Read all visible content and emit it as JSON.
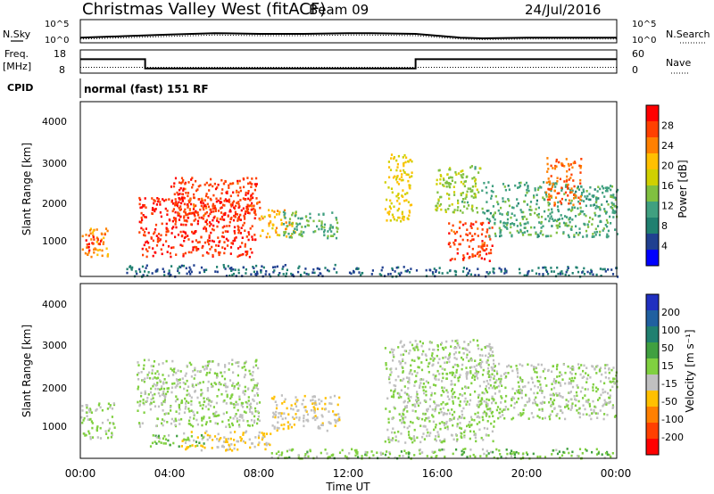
{
  "header": {
    "station": "Christmas Valley West (fitACF)",
    "beam": "Beam 09",
    "date": "24/Jul/2016"
  },
  "noise_panel": {
    "left_label": "N.Sky",
    "left_ticks": [
      "10^5",
      "10^0"
    ],
    "right_label": "N.Search",
    "right_ticks": [
      "10^5",
      "10^0"
    ]
  },
  "freq_panel": {
    "left_label_1": "Freq.",
    "left_label_2": "[MHz]",
    "left_ticks": [
      "18",
      "8"
    ],
    "right_label": "Nave",
    "right_ticks": [
      "60",
      "0"
    ]
  },
  "cpid": {
    "label": "CPID",
    "mode": "normal (fast) 151 RF"
  },
  "axes": {
    "time_ticks": [
      "00:00",
      "04:00",
      "08:00",
      "12:00",
      "16:00",
      "20:00",
      "00:00"
    ],
    "range_ticks": [
      "1000",
      "2000",
      "3000",
      "4000"
    ],
    "xlabel": "Time UT",
    "ylabel": "Slant Range [km]"
  },
  "power_colorbar": {
    "title": "Power [dB]",
    "ticks": [
      "28",
      "24",
      "20",
      "16",
      "12",
      "8",
      "4"
    ],
    "colors": [
      "#ff0000",
      "#ff4000",
      "#ff8000",
      "#ffc000",
      "#d0d000",
      "#80c040",
      "#40a080",
      "#208070",
      "#204090",
      "#0000ff"
    ]
  },
  "velocity_colorbar": {
    "title": "Velocity [m s⁻¹]",
    "ticks": [
      "200",
      "100",
      "50",
      "15",
      "-15",
      "-50",
      "-100",
      "-200"
    ],
    "colors": [
      "#2030c0",
      "#2060a0",
      "#208070",
      "#40a040",
      "#80d040",
      "#c0c0c0",
      "#ffc000",
      "#ff8000",
      "#ff4000",
      "#ff0000"
    ]
  },
  "chart_data": [
    {
      "type": "line",
      "title": "N.Sky / N.Search",
      "xlabel": "Time UT",
      "x_hours": [
        0,
        2,
        4,
        6,
        8,
        10,
        12,
        13,
        15,
        17,
        18,
        20,
        22,
        24
      ],
      "series": [
        {
          "name": "N.Sky",
          "values_log10": [
            0.35,
            0.45,
            0.55,
            0.65,
            0.6,
            0.6,
            0.65,
            0.65,
            0.6,
            0.35,
            0.3,
            0.35,
            0.35,
            0.35
          ]
        }
      ],
      "ylim_log10": [
        0,
        5
      ]
    },
    {
      "type": "line",
      "title": "Freq. / Nave",
      "xlabel": "Time UT",
      "segments_hours": [
        [
          0,
          2.9
        ],
        [
          2.9,
          15
        ],
        [
          15,
          24
        ]
      ],
      "series": [
        {
          "name": "Freq. [MHz]",
          "values": [
            14,
            10,
            14
          ]
        },
        {
          "name": "Nave",
          "values": [
            15,
            15,
            15
          ]
        }
      ],
      "ylim_freq": [
        8,
        18
      ],
      "ylim_nave": [
        0,
        60
      ]
    },
    {
      "type": "heatmap",
      "title": "Power [dB]",
      "xlabel": "Time UT",
      "ylabel": "Slant Range [km]",
      "xlim_hours": [
        0,
        24
      ],
      "ylim_km": [
        180,
        4600
      ],
      "zlim": [
        0,
        30
      ],
      "regions": [
        {
          "t": [
            0.0,
            1.2
          ],
          "r": [
            700,
            1450
          ],
          "value": 22
        },
        {
          "t": [
            0.2,
            1.0
          ],
          "r": [
            850,
            1250
          ],
          "value": 27
        },
        {
          "t": [
            2.6,
            7.8
          ],
          "r": [
            700,
            2200
          ],
          "value": 27
        },
        {
          "t": [
            4.0,
            8.0
          ],
          "r": [
            1600,
            2700
          ],
          "value": 26
        },
        {
          "t": [
            8.0,
            9.6
          ],
          "r": [
            1200,
            1900
          ],
          "value": 20
        },
        {
          "t": [
            9.0,
            11.6
          ],
          "r": [
            1150,
            1850
          ],
          "value": 12
        },
        {
          "t": [
            2.0,
            11.5
          ],
          "r": [
            200,
            500
          ],
          "value": 6
        },
        {
          "t": [
            13.6,
            14.8
          ],
          "r": [
            1600,
            3300
          ],
          "value": 18
        },
        {
          "t": [
            15.8,
            18.0
          ],
          "r": [
            1800,
            3000
          ],
          "value": 14
        },
        {
          "t": [
            16.4,
            18.4
          ],
          "r": [
            600,
            1600
          ],
          "value": 26
        },
        {
          "t": [
            18.0,
            24.0
          ],
          "r": [
            1200,
            2600
          ],
          "value": 11
        },
        {
          "t": [
            20.8,
            22.4
          ],
          "r": [
            2000,
            3200
          ],
          "value": 24
        },
        {
          "t": [
            12.0,
            24.0
          ],
          "r": [
            200,
            450
          ],
          "value": 6
        }
      ]
    },
    {
      "type": "heatmap",
      "title": "Velocity [m s⁻¹]",
      "xlabel": "Time UT",
      "ylabel": "Slant Range [km]",
      "xlim_hours": [
        0,
        24
      ],
      "ylim_km": [
        180,
        4600
      ],
      "zlim": [
        -250,
        250
      ],
      "regions": [
        {
          "t": [
            0.0,
            1.5
          ],
          "r": [
            700,
            1600
          ],
          "value": 0
        },
        {
          "t": [
            2.5,
            8.0
          ],
          "r": [
            1000,
            2700
          ],
          "value": 0
        },
        {
          "t": [
            4.5,
            8.5
          ],
          "r": [
            400,
            900
          ],
          "value": -50
        },
        {
          "t": [
            8.5,
            11.6
          ],
          "r": [
            900,
            1800
          ],
          "value": -40
        },
        {
          "t": [
            3.0,
            5.5
          ],
          "r": [
            500,
            800
          ],
          "value": 30
        },
        {
          "t": [
            8.5,
            24.0
          ],
          "r": [
            200,
            450
          ],
          "value": 30
        },
        {
          "t": [
            13.6,
            18.5
          ],
          "r": [
            600,
            3200
          ],
          "value": 0
        },
        {
          "t": [
            18.0,
            24.0
          ],
          "r": [
            1200,
            2600
          ],
          "value": 0
        }
      ]
    }
  ]
}
